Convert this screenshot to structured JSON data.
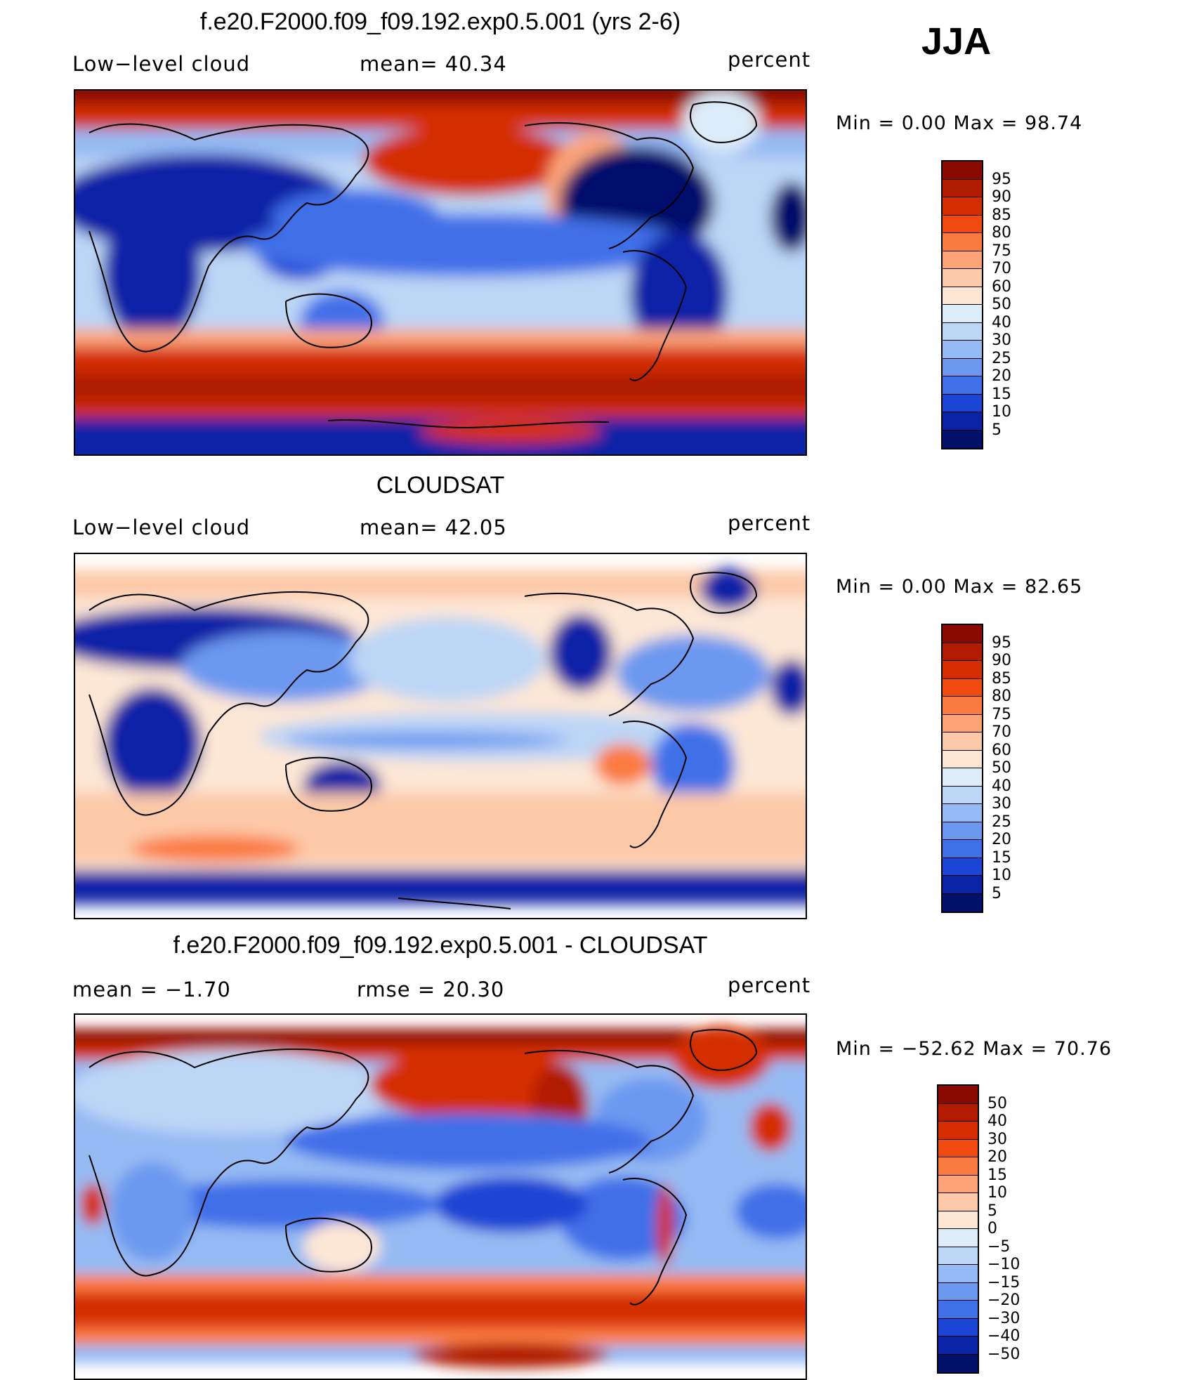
{
  "season": "JJA",
  "panels": [
    {
      "title": "f.e20.F2000.f09_f09.192.exp0.5.001 (yrs 2-6)",
      "left_label": "Low−level  cloud",
      "mid_label": "mean=   40.34",
      "units": "percent",
      "minmax": "Min  =      0.00  Max  =    98.74",
      "colorbar": {
        "labels": [
          "95",
          "90",
          "85",
          "80",
          "75",
          "70",
          "60",
          "50",
          "40",
          "30",
          "25",
          "20",
          "15",
          "10",
          "5"
        ],
        "colors": [
          "#8b0a00",
          "#b11c00",
          "#d42e00",
          "#f04a10",
          "#fb7a40",
          "#fca478",
          "#fcc9a8",
          "#fde6d4",
          "#dcecf8",
          "#bcd6f6",
          "#96baf3",
          "#6c98ef",
          "#3f70e8",
          "#1d45d4",
          "#0a22a6",
          "#03116a"
        ]
      }
    },
    {
      "title": "CLOUDSAT",
      "left_label": "Low−level  cloud",
      "mid_label": "mean=   42.05",
      "units": "percent",
      "minmax": "Min  =      0.00  Max  =    82.65",
      "colorbar": {
        "labels": [
          "95",
          "90",
          "85",
          "80",
          "75",
          "70",
          "60",
          "50",
          "40",
          "30",
          "25",
          "20",
          "15",
          "10",
          "5"
        ],
        "colors": [
          "#8b0a00",
          "#b11c00",
          "#d42e00",
          "#f04a10",
          "#fb7a40",
          "#fca478",
          "#fcc9a8",
          "#fde6d4",
          "#dcecf8",
          "#bcd6f6",
          "#96baf3",
          "#6c98ef",
          "#3f70e8",
          "#1d45d4",
          "#0a22a6",
          "#03116a"
        ]
      }
    },
    {
      "title": "f.e20.F2000.f09_f09.192.exp0.5.001 - CLOUDSAT",
      "left_label": "mean  =    −1.70",
      "mid_label": "rmse  =    20.30",
      "units": "percent",
      "minmax": "Min  = −52.62  Max  =    70.76",
      "colorbar": {
        "labels": [
          "50",
          "40",
          "30",
          "20",
          "15",
          "10",
          "5",
          "0",
          "−5",
          "−10",
          "−15",
          "−20",
          "−30",
          "−40",
          "−50"
        ],
        "colors": [
          "#8b0a00",
          "#b11c00",
          "#d42e00",
          "#f04a10",
          "#fb7a40",
          "#fca478",
          "#fcc9a8",
          "#fde6d4",
          "#dcecf8",
          "#bcd6f6",
          "#96baf3",
          "#6c98ef",
          "#3f70e8",
          "#1d45d4",
          "#0a22a6",
          "#03116a"
        ]
      }
    }
  ],
  "map_colors": {
    "red_dark": "#8b0a00",
    "red": "#d42e00",
    "orange": "#fb7a40",
    "peach": "#fcc9a8",
    "cream": "#fde6d4",
    "pale_blue": "#dcecf8",
    "light_blue": "#96baf3",
    "blue": "#3f70e8",
    "navy": "#0a22a6",
    "deep_navy": "#03116a"
  }
}
